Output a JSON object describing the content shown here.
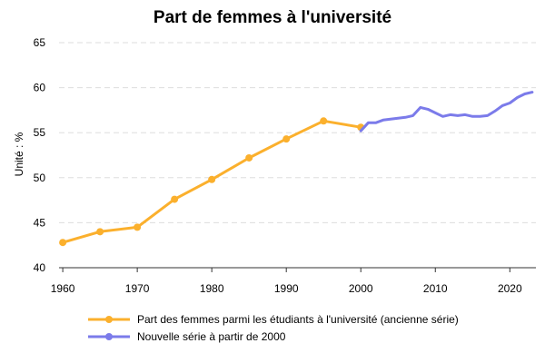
{
  "chart_data": {
    "type": "line",
    "title": "Part de femmes à l'université",
    "ylabel": "Unité : %",
    "xlabel": "",
    "xlim": [
      1959.5,
      2023.5
    ],
    "ylim": [
      40,
      65
    ],
    "x_ticks": [
      1960,
      1970,
      1980,
      1990,
      2000,
      2010,
      2020
    ],
    "y_ticks": [
      40,
      45,
      50,
      55,
      60,
      65
    ],
    "grid": "horizontal",
    "legend_position": "bottom",
    "series": [
      {
        "name": "Part des femmes parmi les étudiants à l'université (ancienne série)",
        "color": "#fbb02d",
        "markers": true,
        "x": [
          1960,
          1965,
          1970,
          1975,
          1980,
          1985,
          1990,
          1995,
          2000
        ],
        "values": [
          42.8,
          44.0,
          44.5,
          47.6,
          49.8,
          52.2,
          54.3,
          56.3,
          55.6
        ]
      },
      {
        "name": "Nouvelle série à partir de 2000",
        "color": "#7b7bea",
        "markers": false,
        "x": [
          2000,
          2001,
          2002,
          2003,
          2004,
          2005,
          2006,
          2007,
          2008,
          2009,
          2010,
          2011,
          2012,
          2013,
          2014,
          2015,
          2016,
          2017,
          2018,
          2019,
          2020,
          2021,
          2022,
          2023
        ],
        "values": [
          55.2,
          56.1,
          56.1,
          56.4,
          56.5,
          56.6,
          56.7,
          56.9,
          57.8,
          57.6,
          57.2,
          56.8,
          57.0,
          56.9,
          57.0,
          56.8,
          56.8,
          56.9,
          57.4,
          58.0,
          58.3,
          58.9,
          59.3,
          59.5
        ]
      }
    ]
  }
}
